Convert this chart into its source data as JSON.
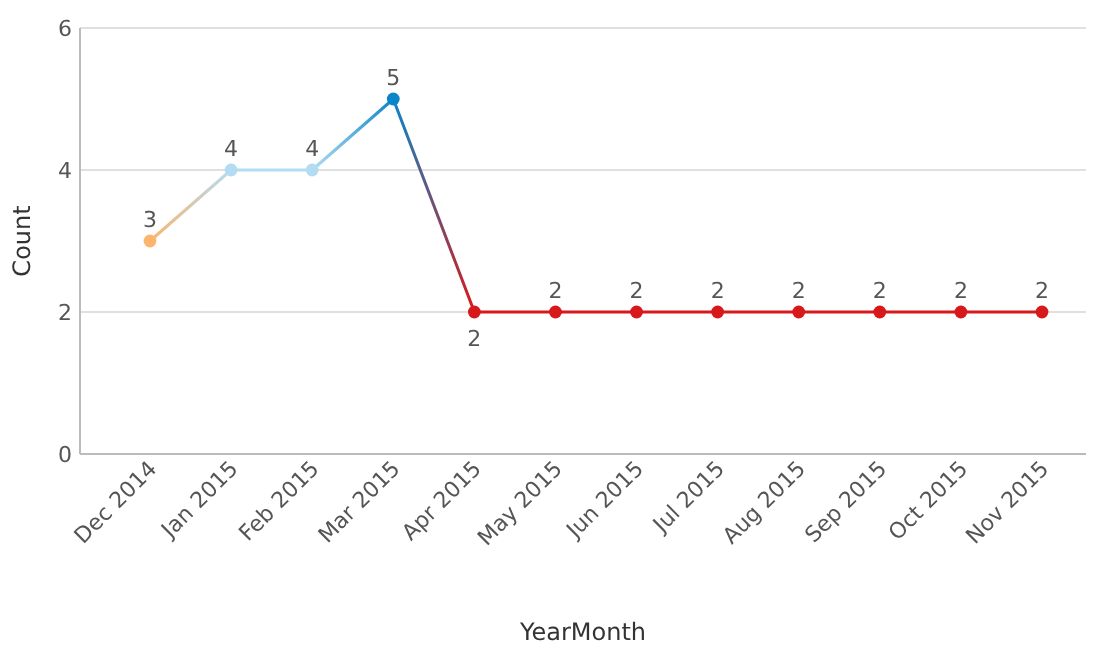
{
  "chart_data": {
    "type": "line",
    "xlabel": "YearMonth",
    "ylabel": "Count",
    "categories": [
      "Dec 2014",
      "Jan 2015",
      "Feb 2015",
      "Mar 2015",
      "Apr 2015",
      "May 2015",
      "Jun 2015",
      "Jul 2015",
      "Aug 2015",
      "Sep 2015",
      "Oct 2015",
      "Nov 2015"
    ],
    "series": [
      {
        "values": [
          3,
          4,
          4,
          5,
          2,
          2,
          2,
          2,
          2,
          2,
          2,
          2
        ],
        "colors": [
          "#fdb46c",
          "#b3dcf2",
          "#b3dcf2",
          "#0a86c8",
          "#d7191c",
          "#d7191c",
          "#d7191c",
          "#d7191c",
          "#d7191c",
          "#d7191c",
          "#d7191c",
          "#d7191c"
        ]
      }
    ],
    "ylim": [
      0,
      6
    ],
    "yticks": [
      0,
      2,
      4,
      6
    ],
    "grid": "y",
    "data_labels": true,
    "marker": "circle",
    "line_style": "solid"
  }
}
